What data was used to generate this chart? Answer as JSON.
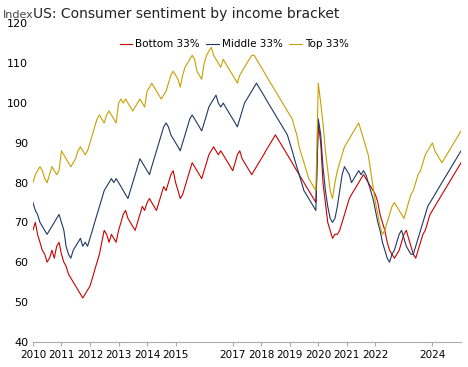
{
  "title": "US: Consumer sentiment by income bracket",
  "ylabel": "Index",
  "ylim": [
    40,
    120
  ],
  "yticks": [
    40,
    50,
    60,
    70,
    80,
    90,
    100,
    110,
    120
  ],
  "colors": {
    "bottom": "#cc0000",
    "middle": "#1f3864",
    "top": "#c8a000"
  },
  "legend_labels": [
    "Bottom 33%",
    "Middle 33%",
    "Top 33%"
  ],
  "xtick_years": [
    2010,
    2011,
    2012,
    2013,
    2014,
    2015,
    2017,
    2018,
    2019,
    2020,
    2021,
    2022,
    2024
  ],
  "bottom_33": [
    68,
    70,
    67,
    65,
    63,
    62,
    60,
    61,
    63,
    61,
    64,
    65,
    62,
    60,
    59,
    57,
    56,
    55,
    54,
    53,
    52,
    51,
    52,
    53,
    54,
    56,
    58,
    60,
    62,
    65,
    68,
    67,
    65,
    67,
    66,
    65,
    68,
    70,
    72,
    73,
    71,
    70,
    69,
    68,
    70,
    72,
    74,
    73,
    75,
    76,
    75,
    74,
    73,
    75,
    77,
    79,
    78,
    80,
    82,
    83,
    80,
    78,
    76,
    77,
    79,
    81,
    83,
    85,
    84,
    83,
    82,
    81,
    83,
    85,
    87,
    88,
    89,
    88,
    87,
    88,
    87,
    86,
    85,
    84,
    83,
    85,
    87,
    88,
    86,
    85,
    84,
    83,
    82,
    83,
    84,
    85,
    86,
    87,
    88,
    89,
    90,
    91,
    92,
    91,
    90,
    89,
    88,
    87,
    86,
    85,
    84,
    83,
    82,
    81,
    80,
    79,
    78,
    77,
    76,
    75,
    95,
    90,
    80,
    75,
    70,
    68,
    66,
    67,
    67,
    68,
    70,
    72,
    74,
    76,
    77,
    78,
    79,
    80,
    81,
    82,
    81,
    80,
    79,
    78,
    77,
    75,
    72,
    70,
    68,
    65,
    63,
    62,
    61,
    62,
    63,
    65,
    67,
    68,
    66,
    64,
    62,
    61,
    63,
    65,
    67,
    68,
    70,
    72,
    73,
    74,
    75,
    76,
    77,
    78,
    79,
    80,
    81,
    82,
    83,
    84,
    85,
    86,
    87,
    88
  ],
  "middle_33": [
    75,
    73,
    72,
    70,
    69,
    68,
    67,
    68,
    69,
    70,
    71,
    72,
    70,
    68,
    64,
    62,
    61,
    63,
    64,
    65,
    66,
    64,
    65,
    64,
    66,
    68,
    70,
    72,
    74,
    76,
    78,
    79,
    80,
    81,
    80,
    81,
    80,
    79,
    78,
    77,
    76,
    78,
    80,
    82,
    84,
    86,
    85,
    84,
    83,
    82,
    84,
    86,
    88,
    90,
    92,
    94,
    95,
    94,
    92,
    91,
    90,
    89,
    88,
    90,
    92,
    94,
    96,
    97,
    96,
    95,
    94,
    93,
    95,
    97,
    99,
    100,
    101,
    102,
    100,
    99,
    100,
    99,
    98,
    97,
    96,
    95,
    94,
    96,
    98,
    100,
    101,
    102,
    103,
    104,
    105,
    104,
    103,
    102,
    101,
    100,
    99,
    98,
    97,
    96,
    95,
    94,
    93,
    92,
    90,
    88,
    86,
    84,
    82,
    80,
    78,
    77,
    76,
    75,
    74,
    73,
    96,
    92,
    84,
    78,
    74,
    71,
    70,
    71,
    74,
    78,
    82,
    84,
    83,
    82,
    80,
    81,
    82,
    83,
    82,
    83,
    82,
    80,
    78,
    76,
    73,
    70,
    68,
    65,
    63,
    61,
    60,
    62,
    63,
    65,
    67,
    68,
    66,
    64,
    63,
    62,
    62,
    64,
    66,
    68,
    70,
    72,
    74,
    75,
    76,
    77,
    78,
    79,
    80,
    81,
    82,
    83,
    84,
    85,
    86,
    87,
    88,
    89,
    90,
    91
  ],
  "top_33": [
    80,
    82,
    83,
    84,
    83,
    81,
    80,
    82,
    84,
    83,
    82,
    83,
    88,
    87,
    86,
    85,
    84,
    85,
    86,
    88,
    89,
    88,
    87,
    88,
    90,
    92,
    94,
    96,
    97,
    96,
    95,
    97,
    98,
    97,
    96,
    95,
    100,
    101,
    100,
    101,
    100,
    99,
    98,
    99,
    100,
    101,
    100,
    99,
    103,
    104,
    105,
    104,
    103,
    102,
    101,
    102,
    103,
    105,
    107,
    108,
    107,
    106,
    104,
    107,
    109,
    110,
    111,
    112,
    111,
    108,
    107,
    106,
    110,
    112,
    113,
    114,
    112,
    111,
    110,
    109,
    111,
    110,
    109,
    108,
    107,
    106,
    105,
    107,
    108,
    109,
    110,
    111,
    112,
    112,
    111,
    110,
    109,
    108,
    107,
    106,
    105,
    104,
    103,
    102,
    101,
    100,
    99,
    98,
    97,
    96,
    94,
    92,
    89,
    87,
    85,
    83,
    81,
    80,
    79,
    78,
    105,
    100,
    95,
    88,
    83,
    78,
    76,
    80,
    83,
    85,
    87,
    89,
    90,
    91,
    92,
    93,
    94,
    95,
    93,
    91,
    89,
    87,
    83,
    79,
    75,
    72,
    69,
    67,
    68,
    70,
    72,
    74,
    75,
    74,
    73,
    72,
    71,
    73,
    75,
    77,
    78,
    80,
    82,
    83,
    85,
    87,
    88,
    89,
    90,
    88,
    87,
    86,
    85,
    86,
    87,
    88,
    89,
    90,
    91,
    92,
    93,
    94,
    95,
    96
  ]
}
